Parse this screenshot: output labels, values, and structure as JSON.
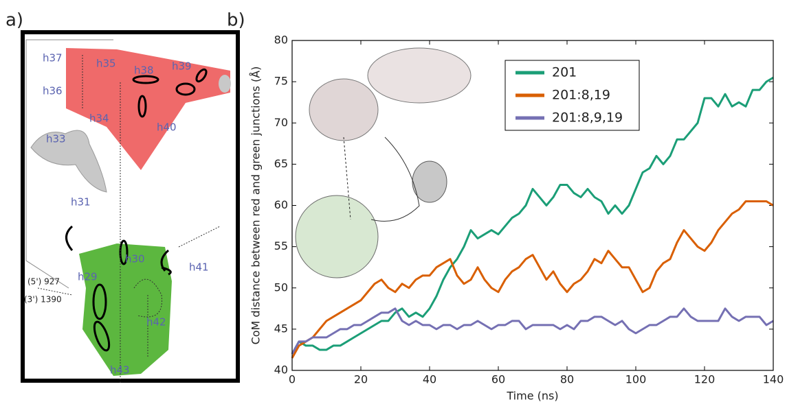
{
  "panels": {
    "a": "a)",
    "b": "b)"
  },
  "diagram": {
    "labels": [
      "h37",
      "h35",
      "h38",
      "h39",
      "h36",
      "h34",
      "h40",
      "h33",
      "h31",
      "h30",
      "h29",
      "h41",
      "h42",
      "h43",
      "(5') 927",
      "(3') 1390"
    ]
  },
  "chart_data": {
    "type": "line",
    "xlabel": "Time (ns)",
    "ylabel": "CoM distance between red and green junctions (Å)",
    "xlim": [
      0,
      140
    ],
    "xticks": [
      0,
      20,
      40,
      60,
      80,
      100,
      120,
      140
    ],
    "ylim": [
      40,
      80
    ],
    "yticks": [
      40,
      45,
      50,
      55,
      60,
      65,
      70,
      75,
      80
    ],
    "legend": "upper center",
    "x": [
      0,
      2,
      4,
      6,
      8,
      10,
      12,
      14,
      16,
      18,
      20,
      22,
      24,
      26,
      28,
      30,
      32,
      34,
      36,
      38,
      40,
      42,
      44,
      46,
      48,
      50,
      52,
      54,
      56,
      58,
      60,
      62,
      64,
      66,
      68,
      70,
      72,
      74,
      76,
      78,
      80,
      82,
      84,
      86,
      88,
      90,
      92,
      94,
      96,
      98,
      100,
      102,
      104,
      106,
      108,
      110,
      112,
      114,
      116,
      118,
      120,
      122,
      124,
      126,
      128,
      130,
      132,
      134,
      136,
      138,
      140
    ],
    "series": [
      {
        "name": "201",
        "color": "#1b9e77",
        "values": [
          42,
          43.5,
          43,
          43,
          42.5,
          42.5,
          43,
          43,
          43.5,
          44,
          44.5,
          45,
          45.5,
          46,
          46,
          47,
          47.5,
          46.5,
          47,
          46.5,
          47.5,
          49,
          51,
          52.5,
          53.5,
          55,
          57,
          56,
          56.5,
          57,
          56.5,
          57.5,
          58.5,
          59,
          60,
          62,
          61,
          60,
          61,
          62.5,
          62.5,
          61.5,
          61,
          62,
          61,
          60.5,
          59,
          60,
          59,
          60,
          62,
          64,
          64.5,
          66,
          65,
          66,
          68,
          68,
          69,
          70,
          73,
          73,
          72,
          73.5,
          72,
          72.5,
          72,
          74,
          74,
          75,
          75.5
        ]
      },
      {
        "name": "201:8,19",
        "color": "#d95f02",
        "values": [
          41.5,
          43,
          43.5,
          44,
          45,
          46,
          46.5,
          47,
          47.5,
          48,
          48.5,
          49.5,
          50.5,
          51,
          50,
          49.5,
          50.5,
          50,
          51,
          51.5,
          51.5,
          52.5,
          53,
          53.5,
          51.5,
          50.5,
          51,
          52.5,
          51,
          50,
          49.5,
          51,
          52,
          52.5,
          53.5,
          54,
          52.5,
          51,
          52,
          50.5,
          49.5,
          50.5,
          51,
          52,
          53.5,
          53,
          54.5,
          53.5,
          52.5,
          52.5,
          51,
          49.5,
          50,
          52,
          53,
          53.5,
          55.5,
          57,
          56,
          55,
          54.5,
          55.5,
          57,
          58,
          59,
          59.5,
          60.5,
          60.5,
          60.5,
          60.5,
          60
        ]
      },
      {
        "name": "201:8,9,19",
        "color": "#7570b3",
        "values": [
          42,
          43.5,
          43.5,
          44,
          44,
          44,
          44.5,
          45,
          45,
          45.5,
          45.5,
          46,
          46.5,
          47,
          47,
          47.5,
          46,
          45.5,
          46,
          45.5,
          45.5,
          45,
          45.5,
          45.5,
          45,
          45.5,
          45.5,
          46,
          45.5,
          45,
          45.5,
          45.5,
          46,
          46,
          45,
          45.5,
          45.5,
          45.5,
          45.5,
          45,
          45.5,
          45,
          46,
          46,
          46.5,
          46.5,
          46,
          45.5,
          46,
          45,
          44.5,
          45,
          45.5,
          45.5,
          46,
          46.5,
          46.5,
          47.5,
          46.5,
          46,
          46,
          46,
          46,
          47.5,
          46.5,
          46,
          46.5,
          46.5,
          46.5,
          45.5,
          46
        ]
      }
    ]
  }
}
